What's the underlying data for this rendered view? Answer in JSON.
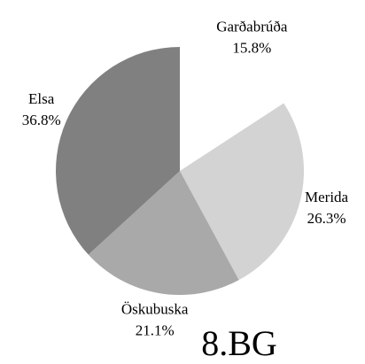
{
  "chart_data": {
    "type": "pie",
    "title": "8.BG",
    "categories": [
      "Garðabrúða",
      "Merida",
      "Öskubuska",
      "Elsa"
    ],
    "values": [
      15.8,
      26.3,
      21.1,
      36.8
    ],
    "value_labels": [
      "15.8%",
      "26.3%",
      "21.1%",
      "36.8%"
    ],
    "colors": [
      "#ffffff",
      "#d3d3d3",
      "#a9a9a9",
      "#808080"
    ]
  }
}
